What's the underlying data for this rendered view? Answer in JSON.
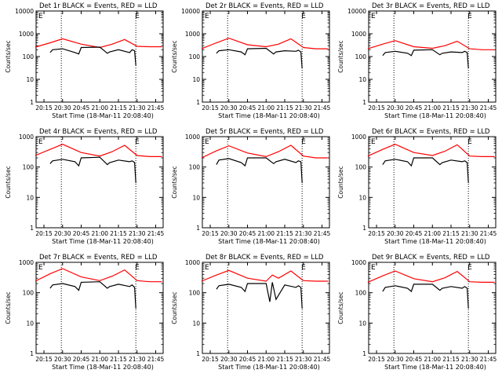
{
  "chart_data": [
    {
      "type": "line",
      "title": "Det 1r BLACK = Events, RED = LLD",
      "xlabel": "Start Time (18-Mar-11 20:08:40)",
      "ylabel": "Counts/sec",
      "yscale": "log",
      "ylim": [
        1,
        10000
      ],
      "xlim": [
        "20:08:40",
        "21:51:00"
      ],
      "xtick_labels": [
        "20:15",
        "20:30",
        "20:45",
        "21:00",
        "21:15",
        "21:30",
        "21:45"
      ],
      "ytick_labels": [
        "1",
        "10",
        "100",
        "1000",
        "10000"
      ],
      "marker_label": "E",
      "vlines": [
        "20:29",
        "21:29"
      ],
      "series": [
        {
          "name": "RED",
          "color": "#ff0000",
          "x": [
            "20:08",
            "20:20",
            "20:30",
            "20:45",
            "21:00",
            "21:10",
            "21:20",
            "21:30",
            "21:40",
            "21:50"
          ],
          "y": [
            260,
            400,
            600,
            350,
            250,
            350,
            560,
            280,
            270,
            270
          ]
        },
        {
          "name": "BLACK",
          "color": "#000000",
          "x": [
            "20:20",
            "20:22",
            "20:30",
            "20:40",
            "20:43",
            "20:45",
            "21:00",
            "21:06",
            "21:08",
            "21:15",
            "21:24",
            "21:26",
            "21:28",
            "21:29"
          ],
          "y": [
            150,
            200,
            220,
            150,
            130,
            250,
            260,
            140,
            160,
            200,
            150,
            200,
            180,
            40
          ]
        }
      ]
    },
    {
      "type": "line",
      "title": "Det 2r BLACK = Events, RED = LLD",
      "xlabel": "Start Time (18-Mar-11 20:08:40)",
      "ylabel": "Counts/sec",
      "yscale": "log",
      "ylim": [
        1,
        10000
      ],
      "xlim": [
        "20:08:40",
        "21:51:00"
      ],
      "xtick_labels": [
        "20:15",
        "20:30",
        "20:45",
        "21:00",
        "21:15",
        "21:30",
        "21:45"
      ],
      "ytick_labels": [
        "1",
        "10",
        "100",
        "1000",
        "10000"
      ],
      "marker_label": "E",
      "vlines": [
        "20:29",
        "21:29"
      ],
      "series": [
        {
          "name": "RED",
          "color": "#ff0000",
          "x": [
            "20:08",
            "20:20",
            "20:30",
            "20:45",
            "21:00",
            "21:10",
            "21:20",
            "21:30",
            "21:40",
            "21:50"
          ],
          "y": [
            220,
            400,
            640,
            330,
            270,
            350,
            600,
            250,
            220,
            220
          ]
        },
        {
          "name": "BLACK",
          "color": "#000000",
          "x": [
            "20:20",
            "20:22",
            "20:30",
            "20:40",
            "20:43",
            "20:45",
            "21:00",
            "21:06",
            "21:08",
            "21:15",
            "21:24",
            "21:26",
            "21:28",
            "21:29"
          ],
          "y": [
            140,
            180,
            200,
            160,
            120,
            220,
            230,
            130,
            160,
            180,
            170,
            190,
            160,
            30
          ]
        }
      ]
    },
    {
      "type": "line",
      "title": "Det 3r BLACK = Events, RED = LLD",
      "xlabel": "Start Time (18-Mar-11 20:08:40)",
      "ylabel": "Counts/sec",
      "yscale": "log",
      "ylim": [
        1,
        10000
      ],
      "xlim": [
        "20:08:40",
        "21:51:00"
      ],
      "xtick_labels": [
        "20:15",
        "20:30",
        "20:45",
        "21:00",
        "21:15",
        "21:30",
        "21:45"
      ],
      "ytick_labels": [
        "1",
        "10",
        "100",
        "1000",
        "10000"
      ],
      "marker_label": "E",
      "vlines": [
        "20:29",
        "21:29"
      ],
      "series": [
        {
          "name": "RED",
          "color": "#ff0000",
          "x": [
            "20:08",
            "20:20",
            "20:30",
            "20:45",
            "21:00",
            "21:10",
            "21:20",
            "21:30",
            "21:40",
            "21:50"
          ],
          "y": [
            220,
            350,
            500,
            270,
            230,
            300,
            470,
            220,
            200,
            200
          ]
        },
        {
          "name": "BLACK",
          "color": "#000000",
          "x": [
            "20:20",
            "20:22",
            "20:30",
            "20:40",
            "20:43",
            "20:45",
            "21:00",
            "21:06",
            "21:08",
            "21:15",
            "21:24",
            "21:26",
            "21:28",
            "21:29"
          ],
          "y": [
            110,
            150,
            170,
            140,
            110,
            190,
            200,
            120,
            140,
            160,
            150,
            170,
            150,
            30
          ]
        }
      ]
    },
    {
      "type": "line",
      "title": "Det 4r BLACK = Events, RED = LLD",
      "xlabel": "Start Time (18-Mar-11 20:08:40)",
      "ylabel": "Counts/sec",
      "yscale": "log",
      "ylim": [
        1,
        1000
      ],
      "xlim": [
        "20:08:40",
        "21:51:00"
      ],
      "xtick_labels": [
        "20:15",
        "20:30",
        "20:45",
        "21:00",
        "21:15",
        "21:30",
        "21:45"
      ],
      "ytick_labels": [
        "1",
        "10",
        "100",
        "1000"
      ],
      "marker_label": "E",
      "vlines": [
        "20:29",
        "21:29"
      ],
      "series": [
        {
          "name": "RED",
          "color": "#ff0000",
          "x": [
            "20:08",
            "20:20",
            "20:30",
            "20:45",
            "21:00",
            "21:10",
            "21:20",
            "21:30",
            "21:40",
            "21:50"
          ],
          "y": [
            240,
            380,
            560,
            300,
            230,
            320,
            520,
            240,
            220,
            220
          ]
        },
        {
          "name": "BLACK",
          "color": "#000000",
          "x": [
            "20:20",
            "20:22",
            "20:30",
            "20:40",
            "20:43",
            "20:45",
            "21:00",
            "21:06",
            "21:08",
            "21:15",
            "21:24",
            "21:26",
            "21:28",
            "21:29"
          ],
          "y": [
            130,
            160,
            180,
            150,
            110,
            200,
            210,
            120,
            140,
            170,
            150,
            160,
            140,
            30
          ]
        }
      ]
    },
    {
      "type": "line",
      "title": "Det 5r BLACK = Events, RED = LLD",
      "xlabel": "Start Time (18-Mar-11 20:08:40)",
      "ylabel": "Counts/sec",
      "yscale": "log",
      "ylim": [
        1,
        1000
      ],
      "xlim": [
        "20:08:40",
        "21:51:00"
      ],
      "xtick_labels": [
        "20:15",
        "20:30",
        "20:45",
        "21:00",
        "21:15",
        "21:30",
        "21:45"
      ],
      "ytick_labels": [
        "1",
        "10",
        "100",
        "1000"
      ],
      "marker_label": "E",
      "vlines": [
        "20:29",
        "21:29"
      ],
      "series": [
        {
          "name": "RED",
          "color": "#ff0000",
          "x": [
            "20:08",
            "20:20",
            "20:30",
            "20:45",
            "21:00",
            "21:10",
            "21:20",
            "21:30",
            "21:40",
            "21:50"
          ],
          "y": [
            200,
            340,
            500,
            290,
            220,
            320,
            520,
            230,
            200,
            200
          ]
        },
        {
          "name": "BLACK",
          "color": "#000000",
          "x": [
            "20:20",
            "20:22",
            "20:30",
            "20:40",
            "20:43",
            "20:45",
            "21:00",
            "21:06",
            "21:08",
            "21:15",
            "21:24",
            "21:26",
            "21:28",
            "21:29"
          ],
          "y": [
            120,
            170,
            190,
            140,
            110,
            200,
            200,
            130,
            150,
            180,
            140,
            160,
            150,
            30
          ]
        }
      ]
    },
    {
      "type": "line",
      "title": "Det 6r BLACK = Events, RED = LLD",
      "xlabel": "Start Time (18-Mar-11 20:08:40)",
      "ylabel": "Counts/sec",
      "yscale": "log",
      "ylim": [
        1,
        1000
      ],
      "xlim": [
        "20:08:40",
        "21:51:00"
      ],
      "xtick_labels": [
        "20:15",
        "20:30",
        "20:45",
        "21:00",
        "21:15",
        "21:30",
        "21:45"
      ],
      "ytick_labels": [
        "1",
        "10",
        "100",
        "1000"
      ],
      "marker_label": "E",
      "vlines": [
        "20:29",
        "21:29"
      ],
      "series": [
        {
          "name": "RED",
          "color": "#ff0000",
          "x": [
            "20:08",
            "20:20",
            "20:30",
            "20:45",
            "21:00",
            "21:10",
            "21:20",
            "21:30",
            "21:40",
            "21:50"
          ],
          "y": [
            230,
            380,
            560,
            300,
            240,
            330,
            540,
            230,
            220,
            220
          ]
        },
        {
          "name": "BLACK",
          "color": "#000000",
          "x": [
            "20:20",
            "20:22",
            "20:30",
            "20:40",
            "20:43",
            "20:45",
            "21:00",
            "21:06",
            "21:08",
            "21:15",
            "21:24",
            "21:26",
            "21:28",
            "21:29"
          ],
          "y": [
            120,
            160,
            180,
            150,
            110,
            200,
            200,
            120,
            140,
            170,
            150,
            160,
            140,
            30
          ]
        }
      ]
    },
    {
      "type": "line",
      "title": "Det 7r BLACK = Events, RED = LLD",
      "xlabel": "Start Time (18-Mar-11 20:08:40)",
      "ylabel": "Counts/sec",
      "yscale": "log",
      "ylim": [
        1,
        1000
      ],
      "xlim": [
        "20:08:40",
        "21:51:00"
      ],
      "xtick_labels": [
        "20:15",
        "20:30",
        "20:45",
        "21:00",
        "21:15",
        "21:30",
        "21:45"
      ],
      "ytick_labels": [
        "1",
        "10",
        "100",
        "1000"
      ],
      "marker_label": "E",
      "vlines": [
        "20:29",
        "21:29"
      ],
      "series": [
        {
          "name": "RED",
          "color": "#ff0000",
          "x": [
            "20:08",
            "20:20",
            "20:30",
            "20:45",
            "21:00",
            "21:10",
            "21:20",
            "21:30",
            "21:40",
            "21:50"
          ],
          "y": [
            240,
            420,
            620,
            330,
            250,
            350,
            560,
            250,
            230,
            230
          ]
        },
        {
          "name": "BLACK",
          "color": "#000000",
          "x": [
            "20:20",
            "20:22",
            "20:30",
            "20:40",
            "20:43",
            "20:45",
            "21:00",
            "21:06",
            "21:08",
            "21:15",
            "21:24",
            "21:26",
            "21:28",
            "21:29"
          ],
          "y": [
            140,
            180,
            200,
            160,
            120,
            220,
            230,
            140,
            160,
            190,
            160,
            180,
            150,
            30
          ]
        }
      ]
    },
    {
      "type": "line",
      "title": "Det 8r BLACK = Events, RED = LLD",
      "xlabel": "Start Time (18-Mar-11 20:08:40)",
      "ylabel": "Counts/sec",
      "yscale": "log",
      "ylim": [
        1,
        1000
      ],
      "xlim": [
        "20:08:40",
        "21:51:00"
      ],
      "xtick_labels": [
        "20:15",
        "20:30",
        "20:45",
        "21:00",
        "21:15",
        "21:30",
        "21:45"
      ],
      "ytick_labels": [
        "1",
        "10",
        "100",
        "1000"
      ],
      "marker_label": "E",
      "vlines": [
        "20:29",
        "21:29"
      ],
      "series": [
        {
          "name": "RED",
          "color": "#ff0000",
          "x": [
            "20:08",
            "20:20",
            "20:30",
            "20:45",
            "21:00",
            "21:05",
            "21:10",
            "21:20",
            "21:30",
            "21:40",
            "21:50"
          ],
          "y": [
            240,
            380,
            540,
            300,
            240,
            380,
            300,
            520,
            250,
            240,
            240
          ]
        },
        {
          "name": "BLACK",
          "color": "#000000",
          "x": [
            "20:20",
            "20:22",
            "20:30",
            "20:40",
            "20:43",
            "20:45",
            "21:00",
            "21:03",
            "21:05",
            "21:08",
            "21:15",
            "21:24",
            "21:26",
            "21:28",
            "21:29"
          ],
          "y": [
            130,
            170,
            190,
            150,
            110,
            200,
            200,
            50,
            220,
            60,
            180,
            150,
            170,
            150,
            30
          ]
        }
      ]
    },
    {
      "type": "line",
      "title": "Det 9r BLACK = Events, RED = LLD",
      "xlabel": "Start Time (18-Mar-11 20:08:40)",
      "ylabel": "Counts/sec",
      "yscale": "log",
      "ylim": [
        1,
        1000
      ],
      "xlim": [
        "20:08:40",
        "21:51:00"
      ],
      "xtick_labels": [
        "20:15",
        "20:30",
        "20:45",
        "21:00",
        "21:15",
        "21:30",
        "21:45"
      ],
      "ytick_labels": [
        "1",
        "10",
        "100",
        "1000"
      ],
      "marker_label": "E",
      "vlines": [
        "20:29",
        "21:29"
      ],
      "series": [
        {
          "name": "RED",
          "color": "#ff0000",
          "x": [
            "20:08",
            "20:20",
            "20:30",
            "20:45",
            "21:00",
            "21:10",
            "21:20",
            "21:30",
            "21:40",
            "21:50"
          ],
          "y": [
            220,
            360,
            520,
            290,
            230,
            310,
            500,
            230,
            220,
            220
          ]
        },
        {
          "name": "BLACK",
          "color": "#000000",
          "x": [
            "20:20",
            "20:22",
            "20:30",
            "20:40",
            "20:43",
            "20:45",
            "21:00",
            "21:06",
            "21:08",
            "21:15",
            "21:24",
            "21:26",
            "21:28",
            "21:29"
          ],
          "y": [
            110,
            150,
            170,
            140,
            110,
            190,
            190,
            120,
            140,
            160,
            140,
            160,
            140,
            30
          ]
        }
      ]
    }
  ]
}
